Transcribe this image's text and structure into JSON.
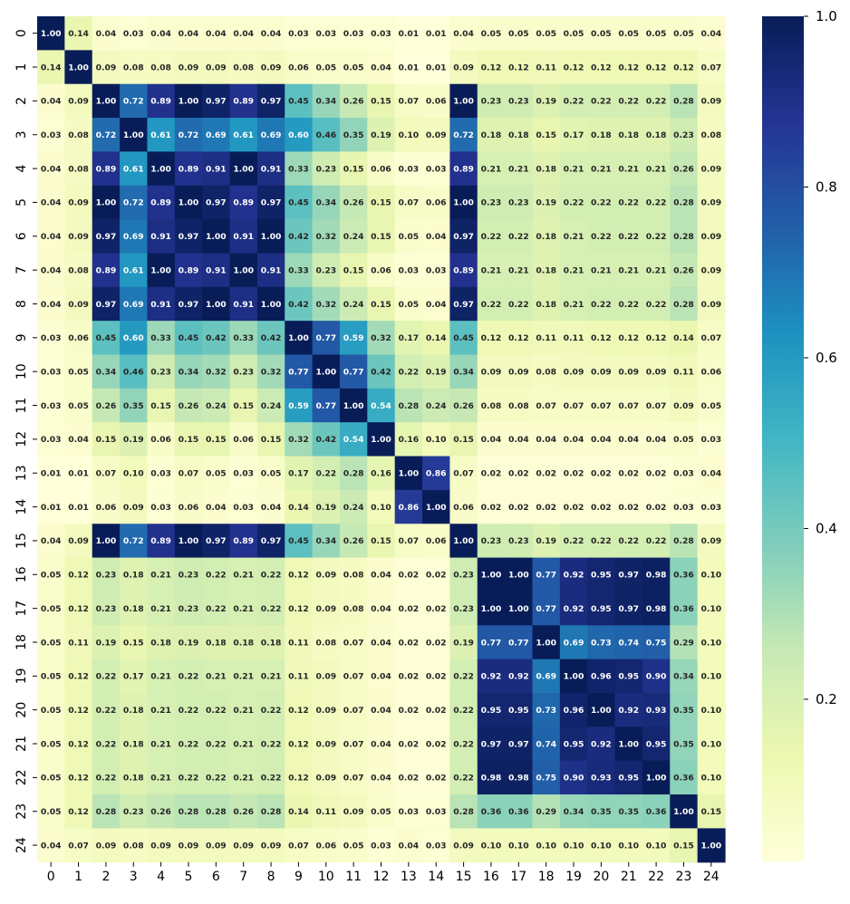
{
  "chart_data": {
    "type": "heatmap",
    "title": "",
    "xlabel": "",
    "ylabel": "",
    "x_labels": [
      "0",
      "1",
      "2",
      "3",
      "4",
      "5",
      "6",
      "7",
      "8",
      "9",
      "10",
      "11",
      "12",
      "13",
      "14",
      "15",
      "16",
      "17",
      "18",
      "19",
      "20",
      "21",
      "22",
      "23",
      "24"
    ],
    "y_labels": [
      "0",
      "1",
      "2",
      "3",
      "4",
      "5",
      "6",
      "7",
      "8",
      "9",
      "10",
      "11",
      "12",
      "13",
      "14",
      "15",
      "16",
      "17",
      "18",
      "19",
      "20",
      "21",
      "22",
      "23",
      "24"
    ],
    "values": [
      [
        1.0,
        0.14,
        0.04,
        0.03,
        0.04,
        0.04,
        0.04,
        0.04,
        0.04,
        0.03,
        0.03,
        0.03,
        0.03,
        0.01,
        0.01,
        0.04,
        0.05,
        0.05,
        0.05,
        0.05,
        0.05,
        0.05,
        0.05,
        0.05,
        0.04
      ],
      [
        0.14,
        1.0,
        0.09,
        0.08,
        0.08,
        0.09,
        0.09,
        0.08,
        0.09,
        0.06,
        0.05,
        0.05,
        0.04,
        0.01,
        0.01,
        0.09,
        0.12,
        0.12,
        0.11,
        0.12,
        0.12,
        0.12,
        0.12,
        0.12,
        0.07
      ],
      [
        0.04,
        0.09,
        1.0,
        0.72,
        0.89,
        1.0,
        0.97,
        0.89,
        0.97,
        0.45,
        0.34,
        0.26,
        0.15,
        0.07,
        0.06,
        1.0,
        0.23,
        0.23,
        0.19,
        0.22,
        0.22,
        0.22,
        0.22,
        0.28,
        0.09
      ],
      [
        0.03,
        0.08,
        0.72,
        1.0,
        0.61,
        0.72,
        0.69,
        0.61,
        0.69,
        0.6,
        0.46,
        0.35,
        0.19,
        0.1,
        0.09,
        0.72,
        0.18,
        0.18,
        0.15,
        0.17,
        0.18,
        0.18,
        0.18,
        0.23,
        0.08
      ],
      [
        0.04,
        0.08,
        0.89,
        0.61,
        1.0,
        0.89,
        0.91,
        1.0,
        0.91,
        0.33,
        0.23,
        0.15,
        0.06,
        0.03,
        0.03,
        0.89,
        0.21,
        0.21,
        0.18,
        0.21,
        0.21,
        0.21,
        0.21,
        0.26,
        0.09
      ],
      [
        0.04,
        0.09,
        1.0,
        0.72,
        0.89,
        1.0,
        0.97,
        0.89,
        0.97,
        0.45,
        0.34,
        0.26,
        0.15,
        0.07,
        0.06,
        1.0,
        0.23,
        0.23,
        0.19,
        0.22,
        0.22,
        0.22,
        0.22,
        0.28,
        0.09
      ],
      [
        0.04,
        0.09,
        0.97,
        0.69,
        0.91,
        0.97,
        1.0,
        0.91,
        1.0,
        0.42,
        0.32,
        0.24,
        0.15,
        0.05,
        0.04,
        0.97,
        0.22,
        0.22,
        0.18,
        0.21,
        0.22,
        0.22,
        0.22,
        0.28,
        0.09
      ],
      [
        0.04,
        0.08,
        0.89,
        0.61,
        1.0,
        0.89,
        0.91,
        1.0,
        0.91,
        0.33,
        0.23,
        0.15,
        0.06,
        0.03,
        0.03,
        0.89,
        0.21,
        0.21,
        0.18,
        0.21,
        0.21,
        0.21,
        0.21,
        0.26,
        0.09
      ],
      [
        0.04,
        0.09,
        0.97,
        0.69,
        0.91,
        0.97,
        1.0,
        0.91,
        1.0,
        0.42,
        0.32,
        0.24,
        0.15,
        0.05,
        0.04,
        0.97,
        0.22,
        0.22,
        0.18,
        0.21,
        0.22,
        0.22,
        0.22,
        0.28,
        0.09
      ],
      [
        0.03,
        0.06,
        0.45,
        0.6,
        0.33,
        0.45,
        0.42,
        0.33,
        0.42,
        1.0,
        0.77,
        0.59,
        0.32,
        0.17,
        0.14,
        0.45,
        0.12,
        0.12,
        0.11,
        0.11,
        0.12,
        0.12,
        0.12,
        0.14,
        0.07
      ],
      [
        0.03,
        0.05,
        0.34,
        0.46,
        0.23,
        0.34,
        0.32,
        0.23,
        0.32,
        0.77,
        1.0,
        0.77,
        0.42,
        0.22,
        0.19,
        0.34,
        0.09,
        0.09,
        0.08,
        0.09,
        0.09,
        0.09,
        0.09,
        0.11,
        0.06
      ],
      [
        0.03,
        0.05,
        0.26,
        0.35,
        0.15,
        0.26,
        0.24,
        0.15,
        0.24,
        0.59,
        0.77,
        1.0,
        0.54,
        0.28,
        0.24,
        0.26,
        0.08,
        0.08,
        0.07,
        0.07,
        0.07,
        0.07,
        0.07,
        0.09,
        0.05
      ],
      [
        0.03,
        0.04,
        0.15,
        0.19,
        0.06,
        0.15,
        0.15,
        0.06,
        0.15,
        0.32,
        0.42,
        0.54,
        1.0,
        0.16,
        0.1,
        0.15,
        0.04,
        0.04,
        0.04,
        0.04,
        0.04,
        0.04,
        0.04,
        0.05,
        0.03
      ],
      [
        0.01,
        0.01,
        0.07,
        0.1,
        0.03,
        0.07,
        0.05,
        0.03,
        0.05,
        0.17,
        0.22,
        0.28,
        0.16,
        1.0,
        0.86,
        0.07,
        0.02,
        0.02,
        0.02,
        0.02,
        0.02,
        0.02,
        0.02,
        0.03,
        0.04
      ],
      [
        0.01,
        0.01,
        0.06,
        0.09,
        0.03,
        0.06,
        0.04,
        0.03,
        0.04,
        0.14,
        0.19,
        0.24,
        0.1,
        0.86,
        1.0,
        0.06,
        0.02,
        0.02,
        0.02,
        0.02,
        0.02,
        0.02,
        0.02,
        0.03,
        0.03
      ],
      [
        0.04,
        0.09,
        1.0,
        0.72,
        0.89,
        1.0,
        0.97,
        0.89,
        0.97,
        0.45,
        0.34,
        0.26,
        0.15,
        0.07,
        0.06,
        1.0,
        0.23,
        0.23,
        0.19,
        0.22,
        0.22,
        0.22,
        0.22,
        0.28,
        0.09
      ],
      [
        0.05,
        0.12,
        0.23,
        0.18,
        0.21,
        0.23,
        0.22,
        0.21,
        0.22,
        0.12,
        0.09,
        0.08,
        0.04,
        0.02,
        0.02,
        0.23,
        1.0,
        1.0,
        0.77,
        0.92,
        0.95,
        0.97,
        0.98,
        0.36,
        0.1
      ],
      [
        0.05,
        0.12,
        0.23,
        0.18,
        0.21,
        0.23,
        0.22,
        0.21,
        0.22,
        0.12,
        0.09,
        0.08,
        0.04,
        0.02,
        0.02,
        0.23,
        1.0,
        1.0,
        0.77,
        0.92,
        0.95,
        0.97,
        0.98,
        0.36,
        0.1
      ],
      [
        0.05,
        0.11,
        0.19,
        0.15,
        0.18,
        0.19,
        0.18,
        0.18,
        0.18,
        0.11,
        0.08,
        0.07,
        0.04,
        0.02,
        0.02,
        0.19,
        0.77,
        0.77,
        1.0,
        0.69,
        0.73,
        0.74,
        0.75,
        0.29,
        0.1
      ],
      [
        0.05,
        0.12,
        0.22,
        0.17,
        0.21,
        0.22,
        0.21,
        0.21,
        0.21,
        0.11,
        0.09,
        0.07,
        0.04,
        0.02,
        0.02,
        0.22,
        0.92,
        0.92,
        0.69,
        1.0,
        0.96,
        0.95,
        0.9,
        0.34,
        0.1
      ],
      [
        0.05,
        0.12,
        0.22,
        0.18,
        0.21,
        0.22,
        0.22,
        0.21,
        0.22,
        0.12,
        0.09,
        0.07,
        0.04,
        0.02,
        0.02,
        0.22,
        0.95,
        0.95,
        0.73,
        0.96,
        1.0,
        0.92,
        0.93,
        0.35,
        0.1
      ],
      [
        0.05,
        0.12,
        0.22,
        0.18,
        0.21,
        0.22,
        0.22,
        0.21,
        0.22,
        0.12,
        0.09,
        0.07,
        0.04,
        0.02,
        0.02,
        0.22,
        0.97,
        0.97,
        0.74,
        0.95,
        0.92,
        1.0,
        0.95,
        0.35,
        0.1
      ],
      [
        0.05,
        0.12,
        0.22,
        0.18,
        0.21,
        0.22,
        0.22,
        0.21,
        0.22,
        0.12,
        0.09,
        0.07,
        0.04,
        0.02,
        0.02,
        0.22,
        0.98,
        0.98,
        0.75,
        0.9,
        0.93,
        0.95,
        1.0,
        0.36,
        0.1
      ],
      [
        0.05,
        0.12,
        0.28,
        0.23,
        0.26,
        0.28,
        0.28,
        0.26,
        0.28,
        0.14,
        0.11,
        0.09,
        0.05,
        0.03,
        0.03,
        0.28,
        0.36,
        0.36,
        0.29,
        0.34,
        0.35,
        0.35,
        0.36,
        1.0,
        0.15
      ],
      [
        0.04,
        0.07,
        0.09,
        0.08,
        0.09,
        0.09,
        0.09,
        0.09,
        0.09,
        0.07,
        0.06,
        0.05,
        0.03,
        0.04,
        0.03,
        0.09,
        0.1,
        0.1,
        0.1,
        0.1,
        0.1,
        0.1,
        0.1,
        0.15,
        1.0
      ]
    ],
    "value_format": "2 decimals",
    "colormap": "YlGnBu",
    "colormap_stops": [
      "#ffffd9",
      "#edf8b1",
      "#c7e9b4",
      "#7fcdbb",
      "#41b6c4",
      "#1d91c0",
      "#225ea8",
      "#253494",
      "#081d58"
    ],
    "vmin": 0.01,
    "vmax": 1.0,
    "colorbar": {
      "ticks": [
        0.2,
        0.4,
        0.6,
        0.8
      ],
      "tick_labels": [
        "0.2",
        "0.4",
        "0.6",
        "0.8"
      ],
      "top_label": "1.0"
    },
    "annotation_text_colors": {
      "on_light": "#262626",
      "on_dark": "#ffffff"
    },
    "grid": false,
    "legend": "colorbar-right"
  }
}
